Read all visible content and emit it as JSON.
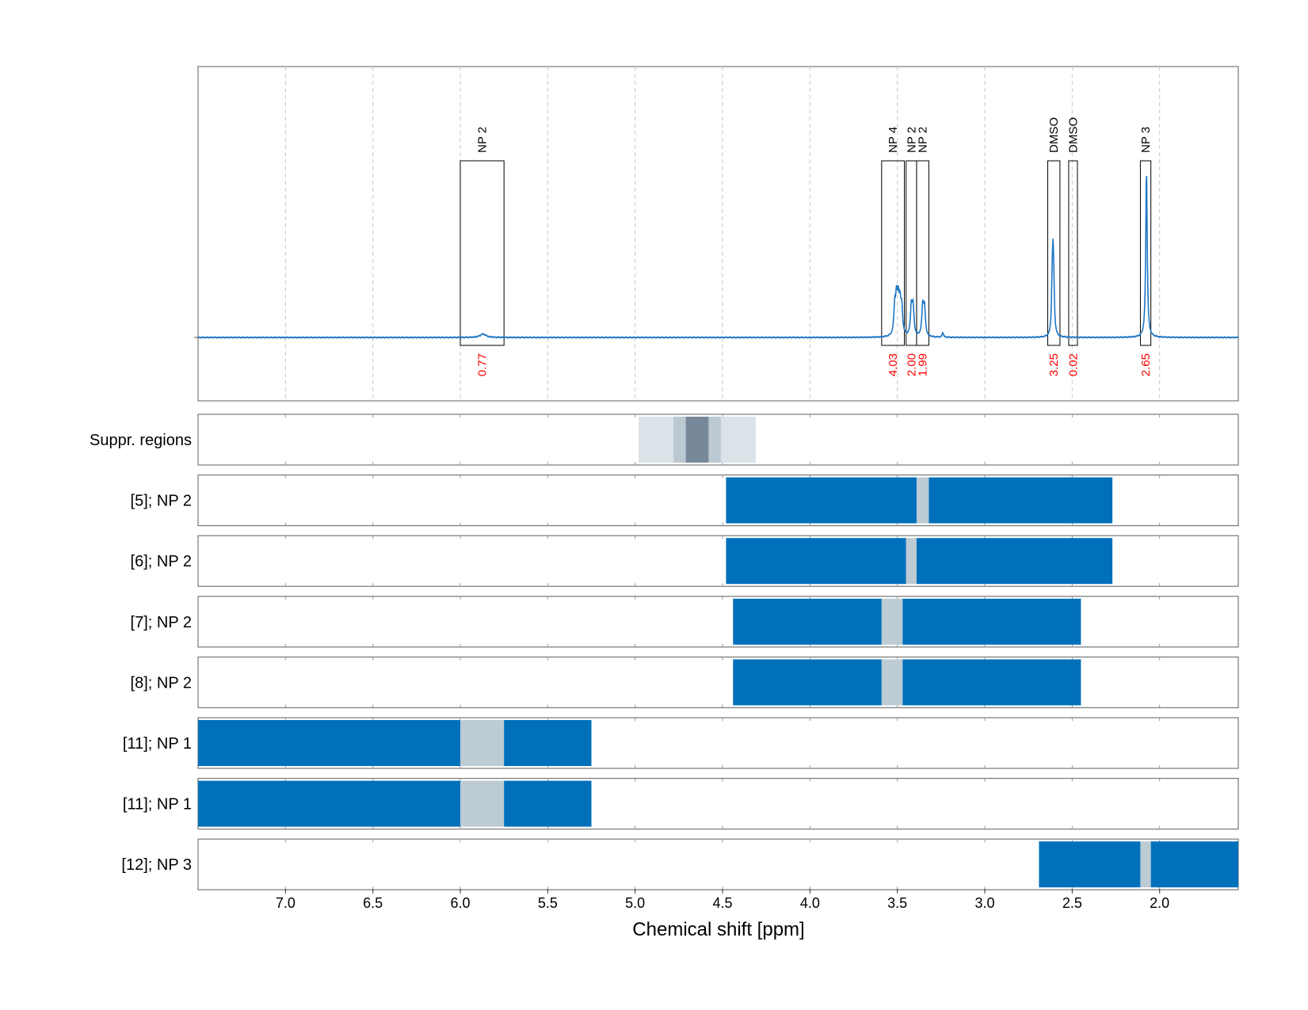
{
  "chart_data": {
    "type": "line",
    "x_axis": {
      "label": "Chemical shift [ppm]",
      "range_left": 7.5,
      "range_right": 1.55,
      "reversed": true,
      "ticks": [
        7.0,
        6.5,
        6.0,
        5.5,
        5.0,
        4.5,
        4.0,
        3.5,
        3.0,
        2.5,
        2.0
      ],
      "tick_labels": [
        "7.0",
        "6.5",
        "6.0",
        "5.5",
        "5.0",
        "4.5",
        "4.0",
        "3.5",
        "3.0",
        "2.5",
        "2.0"
      ]
    },
    "grid": {
      "vertical_dashed": true
    },
    "spectrum": {
      "color": "#1f77c4",
      "baseline_y": 0,
      "y_max": 1.0,
      "peaks": [
        {
          "x": 5.87,
          "height": 0.02,
          "width": 0.02
        },
        {
          "x": 3.515,
          "height": 0.16,
          "width": 0.006
        },
        {
          "x": 3.505,
          "height": 0.19,
          "width": 0.006
        },
        {
          "x": 3.495,
          "height": 0.18,
          "width": 0.006
        },
        {
          "x": 3.485,
          "height": 0.16,
          "width": 0.006
        },
        {
          "x": 3.475,
          "height": 0.15,
          "width": 0.006
        },
        {
          "x": 3.42,
          "height": 0.17,
          "width": 0.006
        },
        {
          "x": 3.41,
          "height": 0.16,
          "width": 0.006
        },
        {
          "x": 3.355,
          "height": 0.17,
          "width": 0.006
        },
        {
          "x": 3.345,
          "height": 0.16,
          "width": 0.006
        },
        {
          "x": 3.24,
          "height": 0.03,
          "width": 0.004
        },
        {
          "x": 2.61,
          "height": 0.43,
          "width": 0.005
        },
        {
          "x": 2.615,
          "height": 0.18,
          "width": 0.004
        },
        {
          "x": 2.605,
          "height": 0.18,
          "width": 0.004
        },
        {
          "x": 2.075,
          "height": 0.97,
          "width": 0.005
        }
      ]
    },
    "annotations": [
      {
        "label": "NP 2",
        "integral": "0.77",
        "x_from": 6.0,
        "x_to": 5.75
      },
      {
        "label": "NP 4",
        "integral": "4.03",
        "x_from": 3.59,
        "x_to": 3.46
      },
      {
        "label": "NP 2",
        "integral": "2.00",
        "x_from": 3.45,
        "x_to": 3.39
      },
      {
        "label": "NP 2",
        "integral": "1.99",
        "x_from": 3.39,
        "x_to": 3.32
      },
      {
        "label": "DMSO",
        "integral": "3.25",
        "x_from": 2.64,
        "x_to": 2.57
      },
      {
        "label": "DMSO",
        "integral": "0.02",
        "x_from": 2.52,
        "x_to": 2.47
      },
      {
        "label": "NP 3",
        "integral": "2.65",
        "x_from": 2.11,
        "x_to": 2.05
      }
    ],
    "lanes": [
      {
        "label": "Suppr. regions",
        "segments": [
          {
            "from": 4.98,
            "to": 4.31,
            "color": "#dbe2e8"
          },
          {
            "from": 4.78,
            "to": 4.51,
            "color": "#bcc9d2"
          },
          {
            "from": 4.71,
            "to": 4.58,
            "color": "#778899"
          }
        ]
      },
      {
        "label": "[5]; NP 2",
        "segments": [
          {
            "from": 4.48,
            "to": 3.39,
            "color": "#0070bb"
          },
          {
            "from": 3.39,
            "to": 3.32,
            "color": "#bccbd4"
          },
          {
            "from": 3.32,
            "to": 2.27,
            "color": "#0070bb"
          }
        ]
      },
      {
        "label": "[6]; NP 2",
        "segments": [
          {
            "from": 4.48,
            "to": 3.45,
            "color": "#0070bb"
          },
          {
            "from": 3.45,
            "to": 3.39,
            "color": "#bccbd4"
          },
          {
            "from": 3.39,
            "to": 2.27,
            "color": "#0070bb"
          }
        ]
      },
      {
        "label": "[7]; NP 2",
        "segments": [
          {
            "from": 4.44,
            "to": 3.59,
            "color": "#0070bb"
          },
          {
            "from": 3.59,
            "to": 3.47,
            "color": "#bccbd4"
          },
          {
            "from": 3.47,
            "to": 2.45,
            "color": "#0070bb"
          }
        ]
      },
      {
        "label": "[8]; NP 2",
        "segments": [
          {
            "from": 4.44,
            "to": 3.59,
            "color": "#0070bb"
          },
          {
            "from": 3.59,
            "to": 3.47,
            "color": "#bccbd4"
          },
          {
            "from": 3.47,
            "to": 2.45,
            "color": "#0070bb"
          }
        ]
      },
      {
        "label": "[11]; NP 1",
        "segments": [
          {
            "from": 7.5,
            "to": 6.0,
            "color": "#0070bb"
          },
          {
            "from": 6.0,
            "to": 5.75,
            "color": "#bccbd4"
          },
          {
            "from": 5.75,
            "to": 5.25,
            "color": "#0070bb"
          }
        ]
      },
      {
        "label": "[11]; NP 1",
        "segments": [
          {
            "from": 7.5,
            "to": 6.0,
            "color": "#0070bb"
          },
          {
            "from": 6.0,
            "to": 5.75,
            "color": "#bccbd4"
          },
          {
            "from": 5.75,
            "to": 5.25,
            "color": "#0070bb"
          }
        ]
      },
      {
        "label": "[12]; NP 3",
        "segments": [
          {
            "from": 2.69,
            "to": 2.11,
            "color": "#0070bb"
          },
          {
            "from": 2.11,
            "to": 2.05,
            "color": "#bccbd4"
          },
          {
            "from": 2.05,
            "to": 1.55,
            "color": "#0070bb"
          }
        ]
      }
    ]
  }
}
